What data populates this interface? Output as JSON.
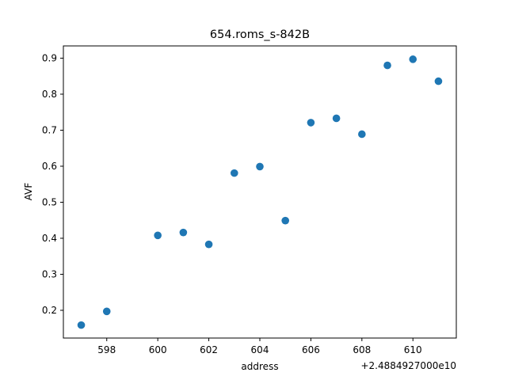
{
  "chart_data": {
    "type": "scatter",
    "title": "654.roms_s-842B",
    "xlabel": "address",
    "ylabel": "AVF",
    "x_offset_label": "+2.4884927000e10",
    "xlim": [
      596.3,
      611.7
    ],
    "ylim": [
      0.123,
      0.934
    ],
    "xticks": [
      598,
      600,
      602,
      604,
      606,
      608,
      610
    ],
    "yticks": [
      0.2,
      0.3,
      0.4,
      0.5,
      0.6,
      0.7,
      0.8,
      0.9
    ],
    "marker_color": "#1f77b4",
    "series": [
      {
        "points": [
          {
            "x": 597,
            "y": 0.159
          },
          {
            "x": 598,
            "y": 0.197
          },
          {
            "x": 600,
            "y": 0.408
          },
          {
            "x": 601,
            "y": 0.416
          },
          {
            "x": 602,
            "y": 0.383
          },
          {
            "x": 603,
            "y": 0.581
          },
          {
            "x": 604,
            "y": 0.599
          },
          {
            "x": 605,
            "y": 0.449
          },
          {
            "x": 606,
            "y": 0.721
          },
          {
            "x": 607,
            "y": 0.733
          },
          {
            "x": 608,
            "y": 0.689
          },
          {
            "x": 609,
            "y": 0.88
          },
          {
            "x": 610,
            "y": 0.897
          },
          {
            "x": 611,
            "y": 0.836
          }
        ]
      }
    ]
  }
}
